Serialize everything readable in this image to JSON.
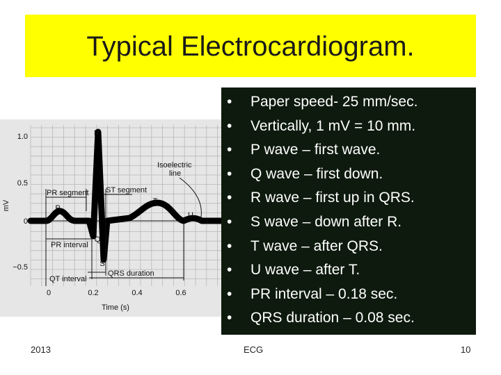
{
  "slide": {
    "title": "Typical Electrocardiogram."
  },
  "diagram": {
    "y_ticks": [
      "1.0",
      "0.5",
      "0",
      "−0.5"
    ],
    "x_ticks": [
      "0",
      "0.2",
      "0.4",
      "0.6"
    ],
    "y_axis_label": "mV",
    "x_axis_label": "Time (s)",
    "wave_labels": {
      "P": "P",
      "Q": "Q",
      "R": "R",
      "S": "S",
      "T": "T",
      "U": "U"
    },
    "annotations": {
      "pr_segment": "PR segment",
      "st_segment": "ST segment",
      "pr_interval": "PR interval",
      "qrs_duration": "QRS duration",
      "qt_interval": "QT interval",
      "isoelectric_line": "Isoelectric line",
      "isoelectric_1": "Isoelectric",
      "isoelectric_2": "line"
    }
  },
  "bullets": [
    "Paper speed- 25 mm/sec.",
    "Vertically, 1 mV = 10 mm.",
    "P wave – first wave.",
    "Q wave – first down.",
    "R wave – first up in QRS.",
    "S wave – down after R.",
    "T wave – after QRS.",
    "U wave – after T.",
    "PR interval – 0.18 sec.",
    "QRS duration – 0.08 sec."
  ],
  "bullet_glyph": "•",
  "footer": {
    "year": "2013",
    "topic": "ECG",
    "page_number": "10"
  },
  "colors": {
    "title_bg": "#ffff00",
    "panel_bg": "#0d1a0d",
    "bullet_text": "#ffffff",
    "grid": "#b8b8b8"
  }
}
